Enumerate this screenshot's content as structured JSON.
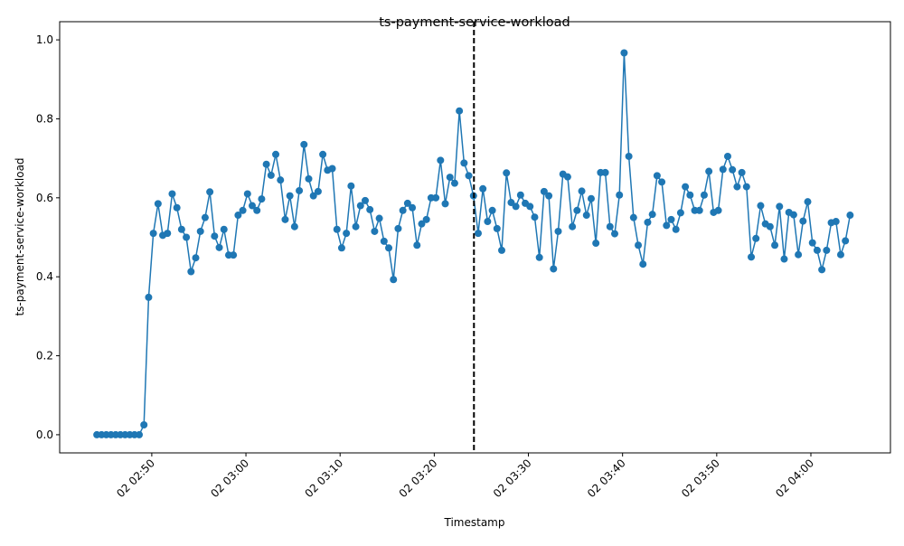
{
  "chart_data": {
    "type": "line",
    "title": "ts-payment-service-workload",
    "xlabel": "Timestamp",
    "ylabel": "ts-payment-service-workload",
    "color": "#1f77b4",
    "marker": "circle",
    "grid": false,
    "xlim": [
      "02 02:40:13",
      "02 04:08:27"
    ],
    "xticks": [
      {
        "value": "02 02:50:00",
        "label": "02 02:50"
      },
      {
        "value": "02 03:00:00",
        "label": "02 03:00"
      },
      {
        "value": "02 03:10:00",
        "label": "02 03:10"
      },
      {
        "value": "02 03:20:00",
        "label": "02 03:20"
      },
      {
        "value": "02 03:30:00",
        "label": "02 03:30"
      },
      {
        "value": "02 03:40:00",
        "label": "02 03:40"
      },
      {
        "value": "02 03:50:00",
        "label": "02 03:50"
      },
      {
        "value": "02 04:00:00",
        "label": "02 04:00"
      }
    ],
    "ylim": [
      -0.046,
      1.046
    ],
    "yticks": [
      {
        "value": 0,
        "label": "0.0"
      },
      {
        "value": 0.2,
        "label": "0.2"
      },
      {
        "value": 0.4,
        "label": "0.4"
      },
      {
        "value": 0.6,
        "label": "0.6"
      },
      {
        "value": 0.8,
        "label": "0.8"
      },
      {
        "value": 1,
        "label": "1.0"
      }
    ],
    "vlines": [
      {
        "x": "02 03:24:13",
        "color": "#000000",
        "style": "dashed"
      }
    ],
    "x": [
      "02 02:44:10",
      "02 02:44:40",
      "02 02:45:10",
      "02 02:45:40",
      "02 02:46:10",
      "02 02:46:40",
      "02 02:47:10",
      "02 02:47:40",
      "02 02:48:10",
      "02 02:48:40",
      "02 02:49:10",
      "02 02:49:40",
      "02 02:50:10",
      "02 02:50:40",
      "02 02:51:10",
      "02 02:51:40",
      "02 02:52:10",
      "02 02:52:40",
      "02 02:53:10",
      "02 02:53:40",
      "02 02:54:10",
      "02 02:54:40",
      "02 02:55:10",
      "02 02:55:40",
      "02 02:56:10",
      "02 02:56:40",
      "02 02:57:10",
      "02 02:57:40",
      "02 02:58:10",
      "02 02:58:40",
      "02 02:59:10",
      "02 02:59:40",
      "02 03:00:10",
      "02 03:00:40",
      "02 03:01:10",
      "02 03:01:40",
      "02 03:02:10",
      "02 03:02:40",
      "02 03:03:10",
      "02 03:03:40",
      "02 03:04:10",
      "02 03:04:40",
      "02 03:05:10",
      "02 03:05:40",
      "02 03:06:10",
      "02 03:06:40",
      "02 03:07:10",
      "02 03:07:40",
      "02 03:08:10",
      "02 03:08:40",
      "02 03:09:10",
      "02 03:09:40",
      "02 03:10:10",
      "02 03:10:40",
      "02 03:11:10",
      "02 03:11:40",
      "02 03:12:10",
      "02 03:12:40",
      "02 03:13:10",
      "02 03:13:40",
      "02 03:14:10",
      "02 03:14:40",
      "02 03:15:10",
      "02 03:15:40",
      "02 03:16:10",
      "02 03:16:40",
      "02 03:17:10",
      "02 03:17:40",
      "02 03:18:10",
      "02 03:18:40",
      "02 03:19:10",
      "02 03:19:40",
      "02 03:20:10",
      "02 03:20:40",
      "02 03:21:10",
      "02 03:21:40",
      "02 03:22:10",
      "02 03:22:40",
      "02 03:23:10",
      "02 03:23:40",
      "02 03:24:10",
      "02 03:24:40",
      "02 03:25:10",
      "02 03:25:40",
      "02 03:26:10",
      "02 03:26:40",
      "02 03:27:10",
      "02 03:27:40",
      "02 03:28:10",
      "02 03:28:40",
      "02 03:29:10",
      "02 03:29:40",
      "02 03:30:10",
      "02 03:30:40",
      "02 03:31:10",
      "02 03:31:40",
      "02 03:32:10",
      "02 03:32:40",
      "02 03:33:10",
      "02 03:33:40",
      "02 03:34:10",
      "02 03:34:40",
      "02 03:35:10",
      "02 03:35:40",
      "02 03:36:10",
      "02 03:36:40",
      "02 03:37:10",
      "02 03:37:40",
      "02 03:38:10",
      "02 03:38:40",
      "02 03:39:10",
      "02 03:39:40",
      "02 03:40:10",
      "02 03:40:40",
      "02 03:41:10",
      "02 03:41:40",
      "02 03:42:10",
      "02 03:42:40",
      "02 03:43:10",
      "02 03:43:40",
      "02 03:44:10",
      "02 03:44:40",
      "02 03:45:10",
      "02 03:45:40",
      "02 03:46:10",
      "02 03:46:40",
      "02 03:47:10",
      "02 03:47:40",
      "02 03:48:10",
      "02 03:48:40",
      "02 03:49:10",
      "02 03:49:40",
      "02 03:50:10",
      "02 03:50:40",
      "02 03:51:10",
      "02 03:51:40",
      "02 03:52:10",
      "02 03:52:40",
      "02 03:53:10",
      "02 03:53:40",
      "02 03:54:10",
      "02 03:54:40",
      "02 03:55:10",
      "02 03:55:40",
      "02 03:56:10",
      "02 03:56:40",
      "02 03:57:10",
      "02 03:57:40",
      "02 03:58:10",
      "02 03:58:40",
      "02 03:59:10",
      "02 03:59:40",
      "02 04:00:10",
      "02 04:00:40",
      "02 04:01:10",
      "02 04:01:40",
      "02 04:02:10",
      "02 04:02:40",
      "02 04:03:10",
      "02 04:03:40",
      "02 04:04:10"
    ],
    "values": [
      0,
      0,
      0,
      0,
      0,
      0,
      0,
      0,
      0,
      0,
      0.025,
      0.348,
      0.51,
      0.585,
      0.505,
      0.51,
      0.61,
      0.575,
      0.52,
      0.5,
      0.413,
      0.448,
      0.515,
      0.55,
      0.615,
      0.503,
      0.474,
      0.52,
      0.455,
      0.455,
      0.556,
      0.568,
      0.61,
      0.58,
      0.568,
      0.597,
      0.685,
      0.657,
      0.71,
      0.645,
      0.545,
      0.605,
      0.527,
      0.618,
      0.735,
      0.648,
      0.605,
      0.616,
      0.71,
      0.67,
      0.674,
      0.52,
      0.473,
      0.51,
      0.63,
      0.527,
      0.58,
      0.593,
      0.57,
      0.515,
      0.548,
      0.49,
      0.473,
      0.393,
      0.522,
      0.568,
      0.586,
      0.575,
      0.48,
      0.534,
      0.545,
      0.6,
      0.6,
      0.695,
      0.585,
      0.652,
      0.637,
      0.82,
      0.688,
      0.656,
      0.605,
      0.51,
      0.623,
      0.54,
      0.568,
      0.522,
      0.467,
      0.663,
      0.588,
      0.578,
      0.607,
      0.586,
      0.578,
      0.551,
      0.449,
      0.616,
      0.605,
      0.42,
      0.515,
      0.66,
      0.653,
      0.527,
      0.568,
      0.617,
      0.556,
      0.598,
      0.485,
      0.664,
      0.664,
      0.527,
      0.509,
      0.607,
      0.967,
      0.705,
      0.55,
      0.48,
      0.432,
      0.538,
      0.558,
      0.656,
      0.64,
      0.53,
      0.545,
      0.52,
      0.562,
      0.628,
      0.607,
      0.568,
      0.568,
      0.607,
      0.667,
      0.563,
      0.568,
      0.672,
      0.705,
      0.671,
      0.628,
      0.664,
      0.628,
      0.45,
      0.497,
      0.58,
      0.534,
      0.527,
      0.48,
      0.578,
      0.445,
      0.563,
      0.557,
      0.456,
      0.541,
      0.59,
      0.486,
      0.467,
      0.418,
      0.467,
      0.537,
      0.54,
      0.456,
      0.491,
      0.556
    ]
  }
}
